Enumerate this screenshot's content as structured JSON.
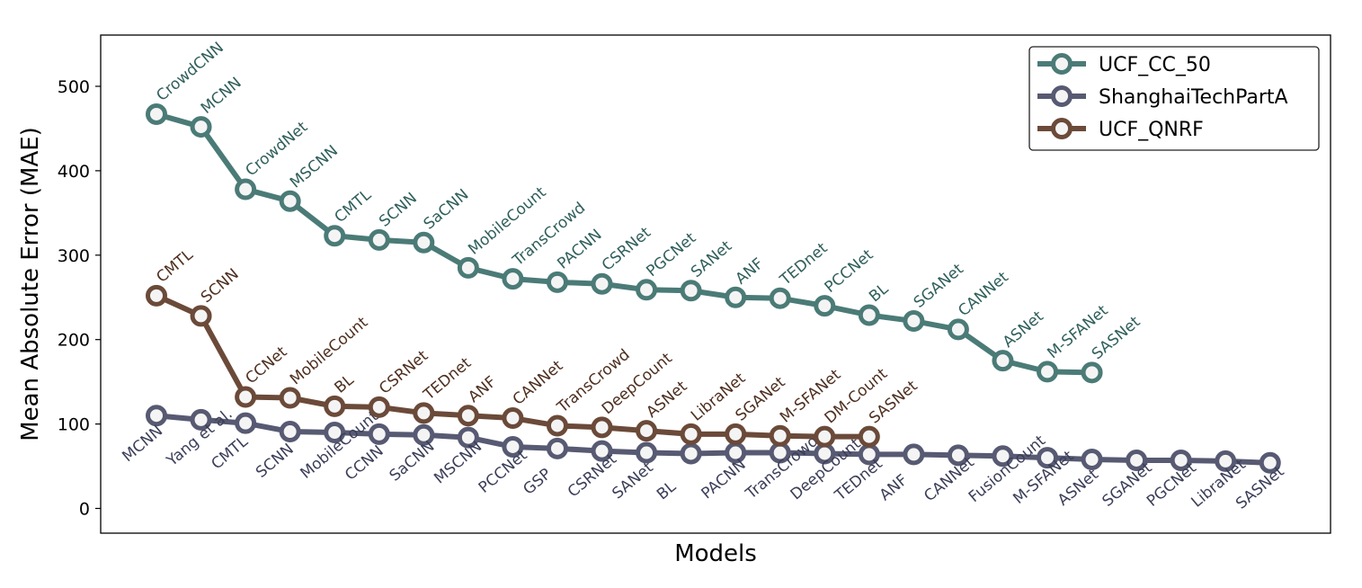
{
  "chart_data": {
    "type": "line",
    "title": "",
    "xlabel": "Models",
    "ylabel": "Mean Absolute Error (MAE)",
    "ylim": [
      -30,
      562
    ],
    "yticks": [
      0,
      100,
      200,
      300,
      400,
      500
    ],
    "grid": false,
    "legend_position": "top-right",
    "series": [
      {
        "name": "UCF_CC_50",
        "color": "#4b7b77",
        "label_color": "#2f5f5b",
        "label_side": "above",
        "models": [
          "CrowdCNN",
          "MCNN",
          "CrowdNet",
          "MSCNN",
          "CMTL",
          "SCNN",
          "SaCNN",
          "MobileCount",
          "TransCrowd",
          "PACNN",
          "CSRNet",
          "PGCNet",
          "SANet",
          "ANF",
          "TEDnet",
          "PCCNet",
          "BL",
          "SGANet",
          "CANNet",
          "ASNet",
          "M-SFANet",
          "SASNet"
        ],
        "values": [
          467,
          452,
          378,
          364,
          323,
          318,
          315,
          285,
          272,
          268,
          266,
          259,
          258,
          250,
          249,
          240,
          229,
          222,
          212,
          175,
          162,
          161
        ]
      },
      {
        "name": "ShanghaiTechPartA",
        "color": "#575a72",
        "label_color": "#3b3e58",
        "label_side": "below",
        "models": [
          "MCNN",
          "Yang et al.",
          "CMTL",
          "SCNN",
          "MobileCount",
          "CCNN",
          "SaCNN",
          "MSCNN",
          "PCCNet",
          "GSP",
          "CSRNet",
          "SANet",
          "BL",
          "PACNN",
          "TransCrowd",
          "DeepCount",
          "TEDnet",
          "ANF",
          "CANNet",
          "FusionCount",
          "M-SFANet",
          "ASNet",
          "SGANet",
          "PGCNet",
          "LibraNet",
          "SASNet"
        ],
        "values": [
          110,
          105,
          101,
          91,
          90,
          88,
          87,
          84,
          73,
          71,
          68,
          66,
          65,
          66,
          66,
          65,
          64,
          64,
          63,
          62,
          60,
          58,
          57,
          57,
          56,
          54
        ]
      },
      {
        "name": "UCF_QNRF",
        "color": "#6b4a39",
        "label_color": "#4e2f1f",
        "label_side": "above",
        "models": [
          "CMTL",
          "SCNN",
          "CCNet",
          "MobileCount",
          "BL",
          "CSRNet",
          "TEDnet",
          "ANF",
          "CANNet",
          "TransCrowd",
          "DeepCount",
          "ASNet",
          "LibraNet",
          "SGANet",
          "M-SFANet",
          "DM-Count",
          "SASNet"
        ],
        "values": [
          252,
          228,
          132,
          131,
          121,
          120,
          113,
          110,
          107,
          98,
          96,
          92,
          88,
          88,
          86,
          85,
          85
        ]
      }
    ]
  }
}
